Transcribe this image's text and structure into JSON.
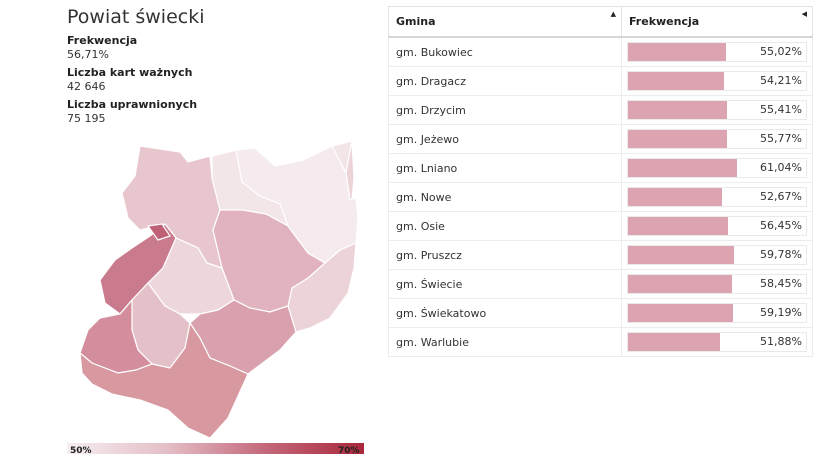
{
  "header": {
    "title": "Powiat świecki",
    "stats": [
      {
        "label": "Frekwencja",
        "value": "56,71%"
      },
      {
        "label": "Liczba kart ważnych",
        "value": "42 646"
      },
      {
        "label": "Liczba uprawnionych",
        "value": "75 195"
      }
    ]
  },
  "legend": {
    "min": "50%",
    "max": "70%"
  },
  "table": {
    "columns": [
      "Gmina",
      "Frekwencja"
    ],
    "rows": [
      {
        "name": "gm. Bukowiec",
        "value": "55,02%",
        "pct": 55.02
      },
      {
        "name": "gm. Dragacz",
        "value": "54,21%",
        "pct": 54.21
      },
      {
        "name": "gm. Drzycim",
        "value": "55,41%",
        "pct": 55.41
      },
      {
        "name": "gm. Jeżewo",
        "value": "55,77%",
        "pct": 55.77
      },
      {
        "name": "gm. Lniano",
        "value": "61,04%",
        "pct": 61.04
      },
      {
        "name": "gm. Nowe",
        "value": "52,67%",
        "pct": 52.67
      },
      {
        "name": "gm. Osie",
        "value": "56,45%",
        "pct": 56.45
      },
      {
        "name": "gm. Pruszcz",
        "value": "59,78%",
        "pct": 59.78
      },
      {
        "name": "gm. Świecie",
        "value": "58,45%",
        "pct": 58.45
      },
      {
        "name": "gm. Świekatowo",
        "value": "59,19%",
        "pct": 59.19
      },
      {
        "name": "gm. Warlubie",
        "value": "51,88%",
        "pct": 51.88
      }
    ]
  },
  "colors": {
    "bar": "#dba4b0",
    "map_light": "#f3e6e9",
    "map_dark": "#a8283a"
  }
}
